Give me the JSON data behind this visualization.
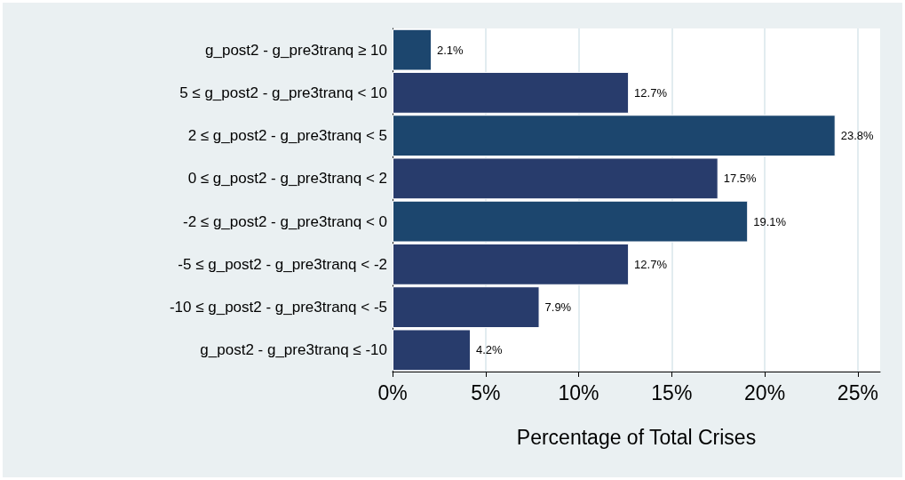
{
  "chart_data": {
    "type": "bar",
    "orientation": "horizontal",
    "xlabel": "Percentage of Total Crises",
    "categories": [
      "g_post2 - g_pre3tranq ≥ 10",
      "5 ≤ g_post2 - g_pre3tranq < 10",
      "2 ≤ g_post2 - g_pre3tranq < 5",
      "0 ≤ g_post2 - g_pre3tranq < 2",
      "-2 ≤ g_post2 - g_pre3tranq < 0",
      "-5 ≤ g_post2 - g_pre3tranq < -2",
      "-10 ≤ g_post2 - g_pre3tranq < -5",
      "g_post2 - g_pre3tranq ≤ -10"
    ],
    "values": [
      2.1,
      12.7,
      23.8,
      17.5,
      19.1,
      12.7,
      7.9,
      4.2
    ],
    "value_labels": [
      "2.1%",
      "12.7%",
      "23.8%",
      "17.5%",
      "19.1%",
      "12.7%",
      "7.9%",
      "4.2%"
    ],
    "colors": [
      "#1c466e",
      "#283c6c",
      "#1c466e",
      "#283c6c",
      "#1c466e",
      "#283c6c",
      "#283c6c",
      "#283c6c"
    ],
    "xlim": [
      0,
      26.2
    ],
    "xticks": [
      {
        "value": 0,
        "label": "0%"
      },
      {
        "value": 5,
        "label": "5%"
      },
      {
        "value": 10,
        "label": "10%"
      },
      {
        "value": 15,
        "label": "15%"
      },
      {
        "value": 20,
        "label": "20%"
      },
      {
        "value": 25,
        "label": "25%"
      }
    ],
    "grid": "x"
  }
}
